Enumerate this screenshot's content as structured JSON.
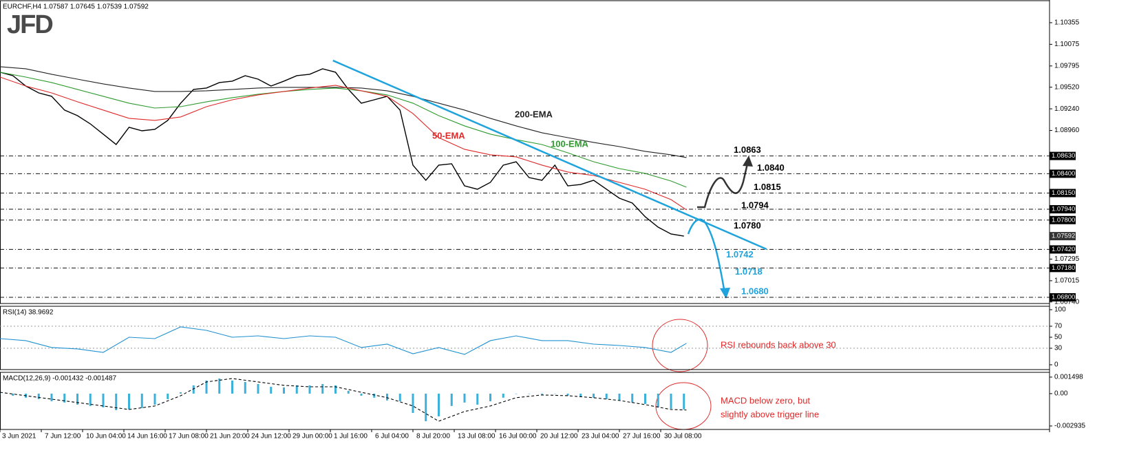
{
  "logo": "JFD",
  "chart_data": [
    {
      "type": "line",
      "title": "EURCHF,H4 1.07587 1.07645 1.07539 1.07592",
      "xlim": [
        0,
        406.67
      ],
      "ylim": [
        1.06729,
        1.10604
      ],
      "yticks": [
        1.10355,
        1.10075,
        1.09795,
        {
          "value": 1.0952,
          "label": "1.09520"
        },
        {
          "value": 1.0924,
          "label": "1.09240"
        },
        {
          "value": 1.0896,
          "label": "1.08960"
        },
        1.07295,
        1.07015,
        {
          "value": 1.0674,
          "label": "1.06740"
        }
      ],
      "xticks": [
        {
          "value": 0,
          "label": "3 Jun 2021"
        },
        {
          "value": 16,
          "label": "7 Jun 12:00"
        },
        {
          "value": 32,
          "label": "10 Jun 04:00"
        },
        {
          "value": 48,
          "label": "14 Jun 16:00"
        },
        {
          "value": 64,
          "label": "17 Jun 08:00"
        },
        {
          "value": 80,
          "label": "21 Jun 20:00"
        },
        {
          "value": 96,
          "label": "24 Jun 12:00"
        },
        {
          "value": 112,
          "label": "29 Jun 00:00"
        },
        {
          "value": 128,
          "label": "1 Jul 16:00"
        },
        {
          "value": 144,
          "label": "6 Jul 04:00"
        },
        {
          "value": 160,
          "label": "8 Jul 20:00"
        },
        {
          "value": 176,
          "label": "13 Jul 08:00"
        },
        {
          "value": 192,
          "label": "16 Jul 00:00"
        },
        {
          "value": 208,
          "label": "20 Jul 12:00"
        },
        {
          "value": 224,
          "label": "23 Jul 04:00"
        },
        {
          "value": 240,
          "label": "27 Jul 16:00"
        },
        {
          "value": 256,
          "label": "30 Jul 08:00"
        }
      ],
      "series": [
        {
          "color": "#000000",
          "x": [
            0,
            5,
            10,
            15,
            20,
            25,
            30,
            35,
            40,
            45,
            50,
            55,
            60,
            65,
            70,
            75,
            80,
            85,
            90,
            95,
            100,
            105,
            110,
            115,
            120,
            125,
            130,
            135,
            140,
            145,
            150,
            155,
            160,
            165,
            170,
            175,
            180,
            185,
            190,
            195,
            200,
            205,
            210,
            215,
            220,
            225,
            230,
            235,
            240,
            245,
            250,
            255,
            260,
            265
          ],
          "values": [
            1.09714,
            1.09669,
            1.09535,
            1.09446,
            1.09402,
            1.09224,
            1.09152,
            1.09045,
            1.08912,
            1.08778,
            1.09001,
            1.08956,
            1.08974,
            1.0909,
            1.09313,
            1.09491,
            1.09509,
            1.0958,
            1.09598,
            1.09669,
            1.09624,
            1.09535,
            1.09598,
            1.09669,
            1.09687,
            1.09758,
            1.09714,
            1.09491,
            1.09313,
            1.09357,
            1.09402,
            1.09224,
            1.08511,
            1.08315,
            1.08511,
            1.08529,
            1.08243,
            1.08199,
            1.08288,
            1.08511,
            1.08555,
            1.0835,
            1.08315,
            1.08511,
            1.08243,
            1.08261,
            1.08315,
            1.08199,
            1.08083,
            1.08021,
            1.07843,
            1.07709,
            1.0762,
            1.07592
          ]
        },
        {
          "name": "200-EMA",
          "color": "#222222",
          "x": [
            0,
            10,
            20,
            30,
            40,
            50,
            60,
            70,
            80,
            90,
            100,
            110,
            120,
            130,
            140,
            150,
            160,
            170,
            180,
            190,
            200,
            210,
            220,
            230,
            240,
            250,
            260,
            266
          ],
          "values": [
            1.09785,
            1.09758,
            1.09687,
            1.09624,
            1.09562,
            1.09509,
            1.09464,
            1.09464,
            1.09473,
            1.09491,
            1.09509,
            1.09518,
            1.09518,
            1.09518,
            1.09509,
            1.09473,
            1.09402,
            1.09313,
            1.09224,
            1.09117,
            1.09019,
            1.0893,
            1.08867,
            1.08805,
            1.08751,
            1.08689,
            1.08645,
            1.08609
          ]
        },
        {
          "name": "100-EMA",
          "color": "#2e9a2e",
          "x": [
            0,
            10,
            20,
            30,
            40,
            50,
            60,
            70,
            80,
            90,
            100,
            110,
            120,
            130,
            140,
            150,
            160,
            170,
            180,
            190,
            200,
            210,
            220,
            230,
            240,
            250,
            260,
            266
          ],
          "values": [
            1.09714,
            1.09651,
            1.0958,
            1.09491,
            1.09402,
            1.09313,
            1.0925,
            1.09268,
            1.09331,
            1.09384,
            1.09429,
            1.09464,
            1.09491,
            1.09509,
            1.09473,
            1.0942,
            1.09313,
            1.09152,
            1.09019,
            1.08912,
            1.08841,
            1.08778,
            1.08671,
            1.08555,
            1.08466,
            1.08404,
            1.08306,
            1.08226
          ]
        },
        {
          "name": "50-EMA",
          "color": "#e02828",
          "x": [
            0,
            10,
            20,
            30,
            40,
            50,
            60,
            70,
            80,
            90,
            100,
            110,
            120,
            130,
            140,
            150,
            160,
            170,
            180,
            190,
            200,
            210,
            220,
            230,
            240,
            250,
            260,
            266
          ],
          "values": [
            1.09651,
            1.09535,
            1.09446,
            1.09331,
            1.09224,
            1.09117,
            1.0909,
            1.09135,
            1.09268,
            1.09357,
            1.0942,
            1.09464,
            1.09509,
            1.09544,
            1.09473,
            1.09402,
            1.09179,
            1.08867,
            1.08716,
            1.08645,
            1.08618,
            1.08511,
            1.08422,
            1.08377,
            1.08288,
            1.08199,
            1.08065,
            1.07932
          ]
        }
      ],
      "trendline": {
        "color": "#1fa3dc",
        "x": [
          129,
          297
        ],
        "values": [
          1.09865,
          1.07424
        ]
      },
      "price_box": {
        "value": 1.07592,
        "label": "1.07592"
      },
      "levels": [
        {
          "value": 1.0863,
          "label": "1.0863",
          "axis_label": "1.08630",
          "label_color": "#000000"
        },
        {
          "value": 1.084,
          "label": "1.0840",
          "axis_label": "1.08400",
          "label_color": "#000000"
        },
        {
          "value": 1.0815,
          "label": "1.0815",
          "axis_label": "1.08150",
          "label_color": "#000000"
        },
        {
          "value": 1.0794,
          "label": "1.0794",
          "axis_label": "1.07940",
          "label_color": "#000000"
        },
        {
          "value": 1.078,
          "label": "1.0780",
          "axis_label": "1.07800",
          "label_color": "#000000"
        },
        {
          "value": 1.0742,
          "label": "1.0742",
          "axis_label": "1.07420",
          "label_color": "#1fa3dc"
        },
        {
          "value": 1.0718,
          "label": "1.0718",
          "axis_label": "1.07180",
          "label_color": "#1fa3dc"
        },
        {
          "value": 1.068,
          "label": "1.0680",
          "axis_label": "1.06800",
          "label_color": "#1fa3dc"
        }
      ]
    },
    {
      "type": "line",
      "title": "RSI(14) 38.9692",
      "ylim": [
        0,
        100
      ],
      "yticks": [
        100,
        70,
        50,
        30,
        0
      ],
      "hlines": [
        70,
        30
      ],
      "annotation": [
        "RSI rebounds back above 30"
      ],
      "series": [
        {
          "color": "#1e90d0",
          "x": [
            0,
            10,
            20,
            30,
            40,
            50,
            60,
            70,
            80,
            90,
            100,
            110,
            120,
            130,
            140,
            150,
            160,
            170,
            180,
            190,
            200,
            210,
            220,
            230,
            240,
            250,
            260,
            266
          ],
          "values": [
            47.5,
            43.8,
            31.3,
            28.8,
            22.5,
            50,
            47.5,
            68.8,
            62.5,
            50,
            52.5,
            47.5,
            52.5,
            50,
            31.3,
            37.5,
            20,
            31.3,
            18.8,
            43.8,
            52.5,
            43.8,
            43.8,
            37.5,
            35,
            31.3,
            22.5,
            38.97
          ]
        }
      ]
    },
    {
      "type": "bar",
      "title": "MACD(12,26,9) -0.001432 -0.001487",
      "ylim": [
        -0.00325,
        0.00193
      ],
      "yticks": [
        0.001498,
        {
          "value": 0,
          "label": "0.00"
        },
        -0.002935
      ],
      "annotation": [
        "MACD below zero, but",
        "slightly above trigger line"
      ],
      "series": [
        {
          "type": "bar",
          "color": "#3bb0d8",
          "x": [
            0,
            5,
            10,
            15,
            20,
            25,
            30,
            35,
            40,
            45,
            50,
            55,
            60,
            65,
            70,
            75,
            80,
            85,
            90,
            95,
            100,
            105,
            110,
            115,
            120,
            125,
            130,
            135,
            140,
            145,
            150,
            155,
            160,
            165,
            170,
            175,
            180,
            185,
            190,
            195,
            200,
            205,
            210,
            215,
            220,
            225,
            230,
            235,
            240,
            245,
            250,
            255,
            260,
            265
          ],
          "values": [
            0,
            -0.00019,
            -0.00037,
            -0.0005,
            -0.00069,
            -0.00081,
            -0.001,
            -0.00112,
            -0.00125,
            -0.0015,
            -0.00144,
            -0.00131,
            -0.001,
            -0.0005,
            0.00012,
            0.00075,
            0.00119,
            0.00137,
            0.00119,
            0.00106,
            0.00087,
            0.00062,
            0.00056,
            0.00075,
            0.00075,
            0.00087,
            0.00075,
            0.00025,
            -0.00019,
            -0.00037,
            -0.00062,
            -0.00069,
            -0.00175,
            -0.0025,
            -0.00206,
            -0.00112,
            -0.00081,
            -0.001,
            -0.00069,
            -0.00037,
            0,
            0,
            -6e-05,
            0,
            -0.00019,
            -0.00031,
            -0.00037,
            -0.0005,
            -0.00062,
            -0.00081,
            -0.00094,
            -0.00125,
            -0.00137,
            -0.001432
          ]
        },
        {
          "type": "line",
          "dash": true,
          "color": "#000000",
          "x": [
            0,
            10,
            20,
            30,
            40,
            50,
            60,
            70,
            80,
            90,
            100,
            110,
            120,
            130,
            140,
            150,
            160,
            170,
            180,
            190,
            200,
            210,
            220,
            230,
            240,
            250,
            260,
            266
          ],
          "values": [
            0.00012,
            -0.00019,
            -0.0005,
            -0.00081,
            -0.00112,
            -0.00144,
            -0.00112,
            -0.00019,
            0.00106,
            0.00137,
            0.00106,
            0.00075,
            0.00062,
            0.00062,
            0.00012,
            -0.00037,
            -0.00112,
            -0.0025,
            -0.00162,
            -0.00112,
            -0.00037,
            -0.00012,
            -0.00019,
            -0.00037,
            -0.00062,
            -0.001,
            -0.00144,
            -0.001487
          ]
        }
      ]
    }
  ]
}
